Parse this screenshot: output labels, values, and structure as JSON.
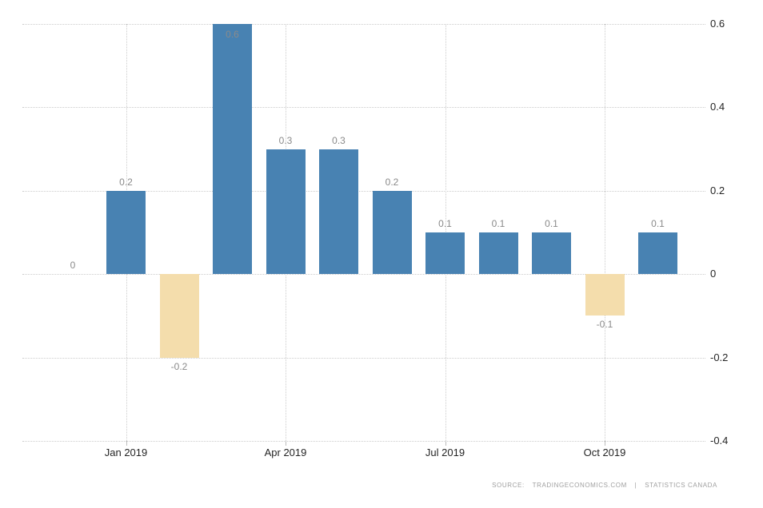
{
  "chart_data": {
    "type": "bar",
    "values": [
      0,
      0.2,
      -0.2,
      0.6,
      0.3,
      0.3,
      0.2,
      0.1,
      0.1,
      0.1,
      -0.1,
      0.1
    ],
    "bar_labels": [
      "0",
      "0.2",
      "-0.2",
      "0.6",
      "0.3",
      "0.3",
      "0.2",
      "0.1",
      "0.1",
      "0.1",
      "-0.1",
      "0.1"
    ],
    "x_ticks": [
      {
        "index": 1,
        "label": "Jan 2019"
      },
      {
        "index": 4,
        "label": "Apr 2019"
      },
      {
        "index": 7,
        "label": "Jul 2019"
      },
      {
        "index": 10,
        "label": "Oct 2019"
      }
    ],
    "y_ticks": [
      "0.6",
      "0.4",
      "0.2",
      "0",
      "-0.2",
      "-0.4"
    ],
    "ylim": [
      -0.4,
      0.6
    ],
    "grid": "dotted",
    "legend": "none",
    "title": "",
    "xlabel": "",
    "ylabel": "",
    "colors": {
      "positive_bar": "#4882B2",
      "negative_bar": "#F4DDAC",
      "gridline": "#cccccc",
      "value_label": "#8a8a8a",
      "axis_label": "#252525",
      "source_text": "#a0a0a0"
    }
  },
  "footer": {
    "source_label": "SOURCE:",
    "provider": "TRADINGECONOMICS.COM",
    "separator": "|",
    "agency": "STATISTICS CANADA"
  }
}
